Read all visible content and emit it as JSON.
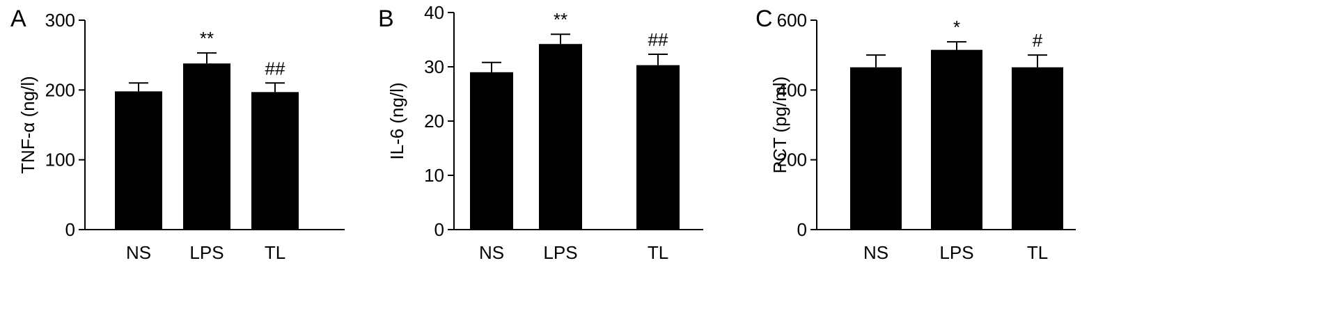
{
  "chart_data": [
    {
      "panel_label": "A",
      "type": "bar",
      "categories": [
        "NS",
        "LPS",
        "TL"
      ],
      "values": [
        198,
        238,
        197
      ],
      "errors": [
        12,
        15,
        13
      ],
      "annotations": [
        "",
        "**",
        "##"
      ],
      "ylabel": "TNF-α (ng/l)",
      "ylim": [
        0,
        300
      ],
      "yticks": [
        0,
        100,
        200,
        300
      ],
      "grid": false,
      "legend": "none",
      "bar_color": "#000000"
    },
    {
      "panel_label": "B",
      "type": "bar",
      "categories": [
        "NS",
        "LPS",
        "TL"
      ],
      "values": [
        29,
        34.2,
        30.3
      ],
      "errors": [
        1.8,
        1.8,
        2.0
      ],
      "annotations": [
        "",
        "**",
        "##"
      ],
      "ylabel": "IL-6 (ng/l)",
      "ylim": [
        0,
        40
      ],
      "yticks": [
        0,
        10,
        20,
        30,
        40
      ],
      "ytick_labels": [
        "0",
        "10",
        "20",
        "30",
        "40"
      ],
      "grid": false,
      "legend": "none",
      "bar_color": "#000000"
    },
    {
      "panel_label": "C",
      "type": "bar",
      "categories": [
        "NS",
        "LPS",
        "TL"
      ],
      "values": [
        465,
        515,
        465
      ],
      "errors": [
        35,
        23,
        35
      ],
      "annotations": [
        "",
        "*",
        "#"
      ],
      "ylabel": "PCT (pg/ml)",
      "ylim": [
        0,
        600
      ],
      "yticks": [
        0,
        200,
        400,
        600
      ],
      "grid": false,
      "legend": "none",
      "bar_color": "#000000"
    }
  ]
}
